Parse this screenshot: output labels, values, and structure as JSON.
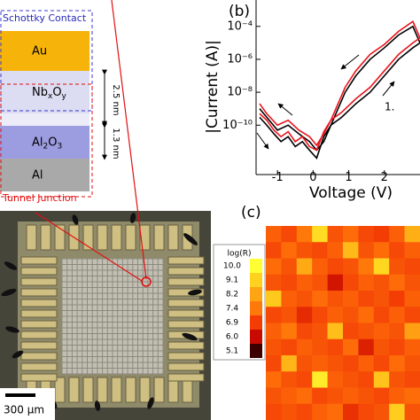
{
  "panel_a": {
    "schottky_label": "Schottky Contact",
    "tunnel_label": "Tunnel Junction",
    "layers": [
      {
        "parts": [
          {
            "text": "Au"
          }
        ],
        "color": "#f6b40b"
      },
      {
        "parts": [
          {
            "text": "Nb"
          },
          {
            "text": "x",
            "sub": true
          },
          {
            "text": "O"
          },
          {
            "text": "y",
            "sub": true
          }
        ],
        "color": "#dcdcf2"
      },
      {
        "parts": [
          {
            "text": "Al"
          },
          {
            "text": "2",
            "sub": true
          },
          {
            "text": "O"
          },
          {
            "text": "3",
            "sub": true
          }
        ],
        "color": "#9c9ce0"
      },
      {
        "parts": [
          {
            "text": "Al"
          }
        ],
        "color": "#a9a9a9"
      }
    ],
    "thickness_labels": [
      "2.5 nm",
      "1.3 nm"
    ],
    "scale_bar": "300 µm"
  },
  "chart_data": [
    {
      "type": "line",
      "panel_label": "(b)",
      "x_label": "Voltage (V)",
      "y_label": "|Current (A)|",
      "annotation": "1.",
      "log_y": true,
      "xlim": [
        -1.6,
        3
      ],
      "ylim": [
        1e-13,
        0.004
      ],
      "xticks": [
        -1,
        0,
        1,
        2
      ],
      "yticks": [
        {
          "value": 0.0001,
          "label": "10⁻⁴"
        },
        {
          "value": 1e-06,
          "label": "10⁻⁶"
        },
        {
          "value": 1e-08,
          "label": "10⁻⁸"
        },
        {
          "value": 1e-10,
          "label": "10⁻¹⁰"
        }
      ],
      "series": [
        {
          "color": "#000000",
          "x": [
            -1.5,
            -1.3,
            -1.1,
            -0.9,
            -0.7,
            -0.5,
            -0.3,
            -0.1,
            0.1,
            0.3,
            0.5,
            0.8,
            1.2,
            1.6,
            2.0,
            2.4,
            2.8,
            3.0,
            2.8,
            2.4,
            2.0,
            1.6,
            1.2,
            0.9,
            0.7,
            0.5,
            0.3,
            0.1,
            -0.1,
            -0.4,
            -0.7,
            -1.0,
            -1.3,
            -1.5
          ],
          "values": [
            3e-10,
            1e-10,
            3e-11,
            1e-11,
            2e-11,
            5e-12,
            1e-11,
            3e-12,
            1e-12,
            2e-11,
            1e-10,
            3e-10,
            2e-09,
            1e-08,
            1e-07,
            1e-06,
            5e-06,
            1e-05,
            0.0001,
            3e-05,
            5e-06,
            1e-06,
            1e-07,
            1e-08,
            1e-09,
            1e-10,
            1e-11,
            3e-12,
            1e-11,
            3e-11,
            1e-10,
            5e-11,
            3e-10,
            1e-09
          ]
        },
        {
          "color": "#e8141c",
          "x": [
            -1.5,
            -1.3,
            -1.1,
            -0.9,
            -0.7,
            -0.5,
            -0.3,
            -0.1,
            0.1,
            0.3,
            0.5,
            0.8,
            1.2,
            1.6,
            2.0,
            2.4,
            2.8,
            3.0,
            2.8,
            2.4,
            2.0,
            1.6,
            1.2,
            0.9,
            0.7,
            0.5,
            0.3,
            0.1,
            -0.1,
            -0.4,
            -0.7,
            -1.0,
            -1.3,
            -1.5
          ],
          "values": [
            5e-10,
            2e-10,
            5e-11,
            2e-11,
            4e-11,
            1e-11,
            2e-11,
            5e-12,
            3e-12,
            4e-11,
            2e-10,
            6e-10,
            4e-09,
            2e-08,
            2e-07,
            2e-06,
            1e-05,
            2e-05,
            0.0002,
            5e-05,
            8e-06,
            2e-06,
            2e-07,
            2e-08,
            2e-09,
            2e-10,
            3e-11,
            6e-12,
            2e-11,
            5e-11,
            2e-10,
            1e-10,
            5e-10,
            2e-09
          ]
        }
      ]
    },
    {
      "type": "heatmap",
      "panel_label": "(c)",
      "colorbar_title": "log(R)",
      "colorbar": [
        {
          "value": 10,
          "label": "10.0",
          "color": "#ffff33"
        },
        {
          "value": 9.1,
          "color": "#ffd21f"
        },
        {
          "value": 8.2,
          "color": "#ffa514"
        },
        {
          "value": 7.4,
          "color": "#ff780a"
        },
        {
          "value": 6.9,
          "color": "#f43c05"
        },
        {
          "value": 6,
          "label": "6.0",
          "color": "#c80a00"
        },
        {
          "value": 5.1,
          "color": "#3c0000"
        }
      ],
      "values": [
        [
          7.2,
          7.0,
          7.4,
          9.3,
          7.1,
          7.3,
          7.0,
          6.9,
          7.2,
          8.4
        ],
        [
          7.0,
          7.3,
          7.1,
          7.0,
          7.2,
          8.6,
          7.1,
          7.3,
          7.0,
          7.2
        ],
        [
          7.3,
          7.1,
          8.3,
          7.2,
          7.0,
          7.1,
          7.4,
          9.2,
          7.1,
          7.0
        ],
        [
          7.1,
          7.0,
          7.2,
          7.1,
          6.2,
          7.0,
          7.2,
          7.1,
          7.3,
          7.1
        ],
        [
          8.9,
          7.2,
          7.1,
          7.3,
          7.1,
          7.2,
          7.0,
          7.1,
          6.9,
          7.2
        ],
        [
          7.0,
          7.1,
          6.6,
          7.0,
          7.2,
          7.1,
          7.3,
          7.0,
          7.2,
          7.0
        ],
        [
          7.2,
          7.4,
          7.0,
          7.1,
          8.7,
          7.0,
          7.1,
          7.2,
          7.1,
          8.1
        ],
        [
          7.1,
          7.0,
          7.2,
          7.1,
          7.0,
          7.3,
          6.4,
          7.1,
          7.0,
          7.2
        ],
        [
          7.0,
          8.5,
          7.1,
          7.2,
          7.1,
          7.0,
          7.2,
          7.0,
          7.3,
          7.1
        ],
        [
          7.3,
          7.1,
          7.0,
          9.6,
          7.2,
          7.1,
          7.0,
          8.8,
          7.1,
          7.0
        ],
        [
          7.1,
          7.2,
          7.3,
          7.0,
          7.1,
          7.2,
          7.1,
          7.0,
          7.2,
          7.3
        ],
        [
          7.0,
          7.1,
          7.0,
          7.2,
          7.3,
          6.7,
          7.0,
          7.1,
          9.0,
          7.1
        ]
      ]
    }
  ]
}
